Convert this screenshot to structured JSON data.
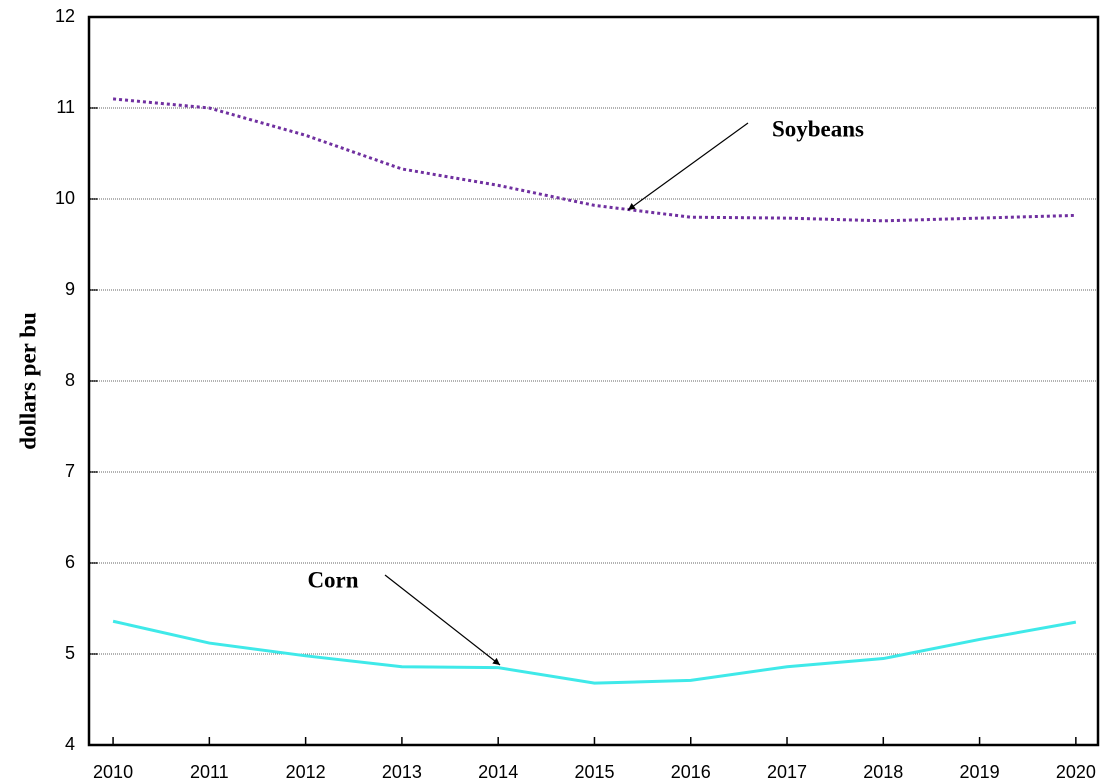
{
  "chart_data": {
    "type": "line",
    "y_label": "dollars per bu",
    "x": [
      2010,
      2011,
      2012,
      2013,
      2014,
      2015,
      2016,
      2017,
      2018,
      2019,
      2020
    ],
    "series": [
      {
        "name": "Soybeans",
        "color": "#7030a0",
        "style": "dotted",
        "values": [
          11.1,
          11.0,
          10.7,
          10.33,
          10.15,
          9.93,
          9.8,
          9.79,
          9.76,
          9.79,
          9.82
        ]
      },
      {
        "name": "Corn",
        "color": "#3fe9e9",
        "style": "solid",
        "values": [
          5.36,
          5.12,
          4.98,
          4.86,
          4.85,
          4.68,
          4.71,
          4.86,
          4.95,
          5.16,
          5.35
        ]
      }
    ],
    "xlim": [
      2009.75,
      2020.23
    ],
    "xticks": [
      2010,
      2011,
      2012,
      2013,
      2014,
      2015,
      2016,
      2017,
      2018,
      2019,
      2020
    ],
    "ylim": [
      4,
      12
    ],
    "yticks": [
      4,
      5,
      6,
      7,
      8,
      9,
      10,
      11,
      12
    ],
    "grid": true
  }
}
